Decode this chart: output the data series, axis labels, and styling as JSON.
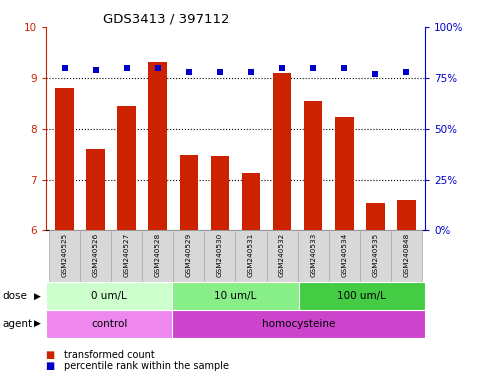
{
  "title": "GDS3413 / 397112",
  "samples": [
    "GSM240525",
    "GSM240526",
    "GSM240527",
    "GSM240528",
    "GSM240529",
    "GSM240530",
    "GSM240531",
    "GSM240532",
    "GSM240533",
    "GSM240534",
    "GSM240535",
    "GSM240848"
  ],
  "bar_values": [
    8.8,
    7.6,
    8.45,
    9.3,
    7.48,
    7.46,
    7.12,
    9.1,
    8.55,
    8.22,
    6.53,
    6.6
  ],
  "dot_values": [
    80,
    79,
    80,
    80,
    78,
    78,
    78,
    80,
    80,
    80,
    77,
    78
  ],
  "bar_color": "#cc2200",
  "dot_color": "#0000cc",
  "ylim_left": [
    6,
    10
  ],
  "ylim_right": [
    0,
    100
  ],
  "yticks_left": [
    6,
    7,
    8,
    9,
    10
  ],
  "yticks_right": [
    0,
    25,
    50,
    75,
    100
  ],
  "yticklabels_right": [
    "0%",
    "25%",
    "50%",
    "75%",
    "100%"
  ],
  "dose_groups": [
    {
      "label": "0 um/L",
      "start": 0,
      "end": 4,
      "color": "#ccffcc"
    },
    {
      "label": "10 um/L",
      "start": 4,
      "end": 8,
      "color": "#88ee88"
    },
    {
      "label": "100 um/L",
      "start": 8,
      "end": 12,
      "color": "#44cc44"
    }
  ],
  "agent_groups": [
    {
      "label": "control",
      "start": 0,
      "end": 4,
      "color": "#ee88ee"
    },
    {
      "label": "homocysteine",
      "start": 4,
      "end": 12,
      "color": "#cc44cc"
    }
  ],
  "legend_items": [
    {
      "color": "#cc2200",
      "label": "transformed count"
    },
    {
      "color": "#0000cc",
      "label": "percentile rank within the sample"
    }
  ],
  "dose_label": "dose",
  "agent_label": "agent",
  "grid_yticks": [
    7,
    8,
    9
  ],
  "xticklabel_bg": "#d8d8d8",
  "xticklabel_border": "#aaaaaa"
}
